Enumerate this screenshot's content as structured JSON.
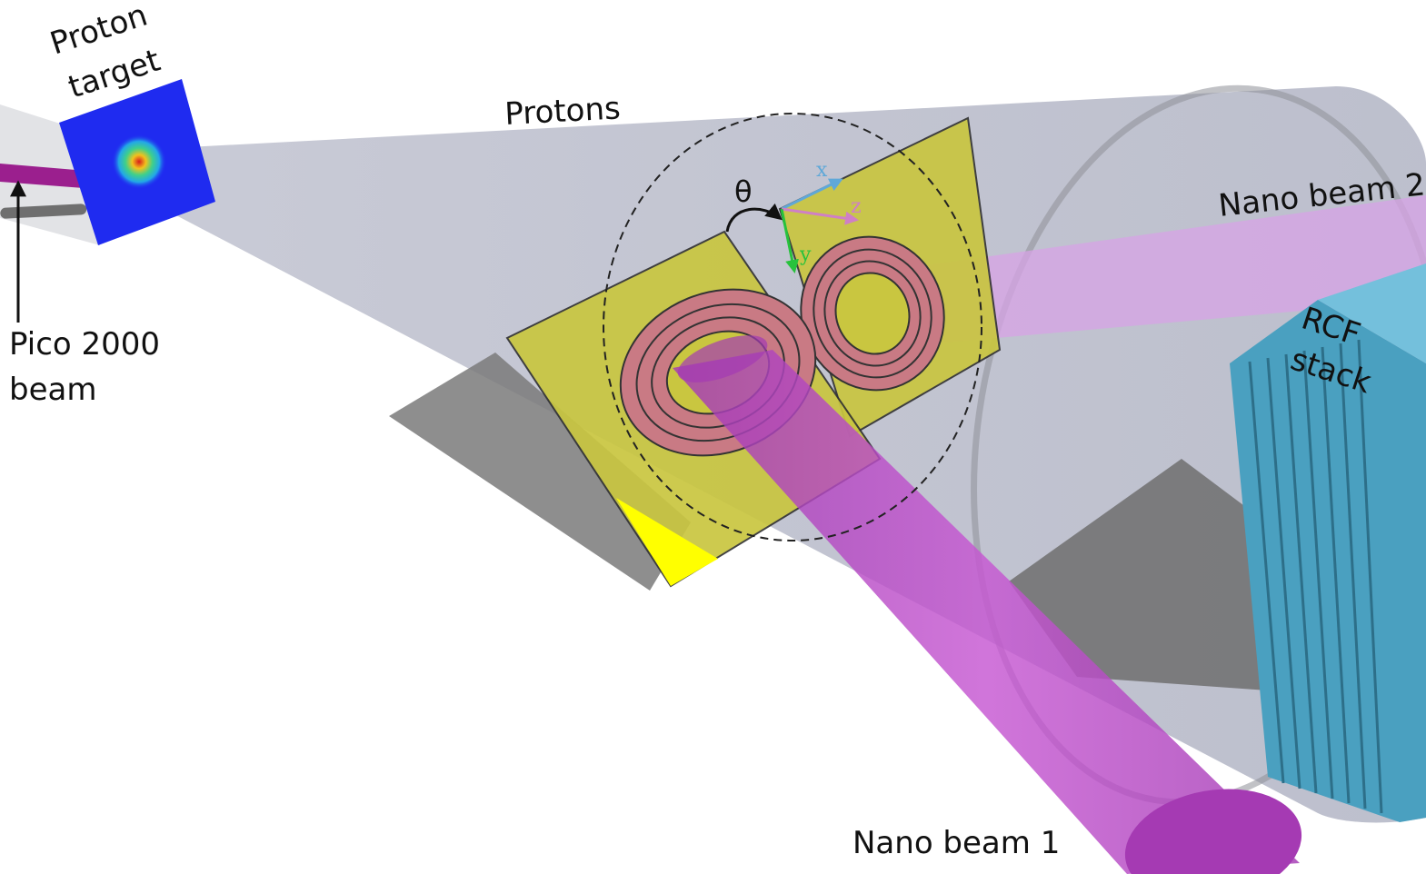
{
  "labels": {
    "proton_target_line1": "Proton",
    "proton_target_line2": "target",
    "protons": "Protons",
    "pico_line1": "Pico 2000",
    "pico_line2": "beam",
    "theta": "θ",
    "axis_x": "x",
    "axis_y": "y",
    "axis_z": "z",
    "nano_beam_1": "Nano beam 1",
    "nano_beam_2": "Nano beam 2",
    "rcf_line1": "RCF",
    "rcf_line2": "stack"
  },
  "colors": {
    "proton_cone": "#b3b6c6",
    "shadow": "#7a7a7a",
    "target_blue": "#1f2bf0",
    "foil_yellow": "#c9c640",
    "foil_bright": "#ffff00",
    "coil_pink": "#c97a84",
    "nano_beam": "#b545c0",
    "nano_beam_2": "#d7a3e6",
    "pico_beam": "#9b1f8e",
    "rcf_blue": "#4aa0c0",
    "axis_x": "#5fa8d8",
    "axis_y": "#27c23c",
    "axis_z": "#cf7fc6"
  }
}
